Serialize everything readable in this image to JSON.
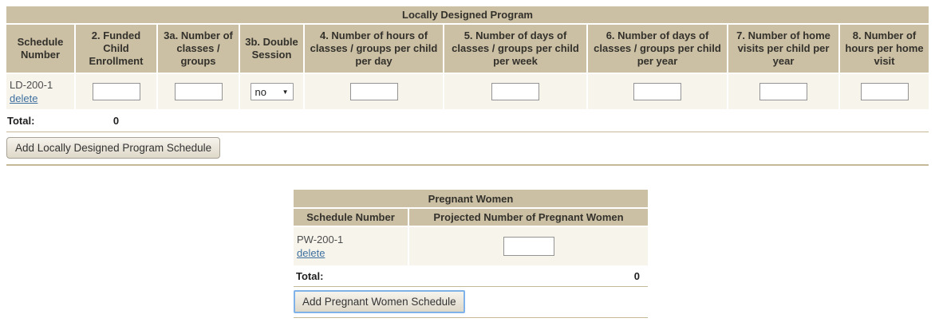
{
  "colors": {
    "header_bg": "#cbbfa4",
    "row_bg": "#f7f4ec",
    "divider": "#c6b998",
    "link": "#3d6f9e",
    "focus_border": "#7fb2e8"
  },
  "ld_table": {
    "title": "Locally Designed Program",
    "columns": [
      "Schedule Number",
      "2. Funded Child Enrollment",
      "3a. Number of classes / groups",
      "3b. Double Session",
      "4. Number of hours of classes / groups per child per day",
      "5. Number of days of classes / groups per child per week",
      "6. Number of days of classes / groups per child per year",
      "7. Number of home visits per child per year",
      "8. Number of hours per home visit"
    ],
    "row": {
      "schedule_number": "LD-200-1",
      "delete_label": "delete",
      "double_session_value": "no",
      "funded_child_enrollment": "",
      "number_of_classes_groups": "",
      "hours_per_child_per_day": "",
      "days_per_child_per_week": "",
      "days_per_child_per_year": "",
      "home_visits_per_child_per_year": "",
      "hours_per_home_visit": ""
    },
    "total_label": "Total:",
    "total_value": "0",
    "add_button_label": "Add Locally Designed Program Schedule"
  },
  "pw_table": {
    "title": "Pregnant Women",
    "columns": [
      "Schedule Number",
      "Projected Number of Pregnant Women"
    ],
    "row": {
      "schedule_number": "PW-200-1",
      "delete_label": "delete",
      "projected_number": ""
    },
    "total_label": "Total:",
    "total_value": "0",
    "add_button_label": "Add Pregnant Women Schedule"
  }
}
